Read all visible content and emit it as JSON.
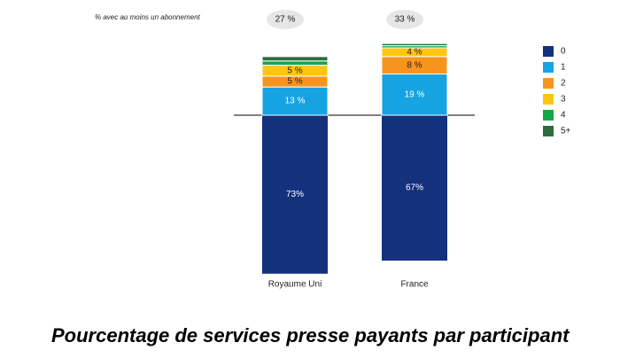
{
  "chart_data": {
    "type": "bar",
    "stacked": true,
    "title": "Pourcentage de services presse payants par participant",
    "subtitle": "% avec au moins un abonnement",
    "categories": [
      "Royaume Uni",
      "France"
    ],
    "annotations": [
      "27 %",
      "33 %"
    ],
    "legend": "upper right",
    "series": [
      {
        "name": "0",
        "color": "#14317d",
        "values": [
          73,
          67
        ],
        "value_labels": [
          "73%",
          "67%"
        ]
      },
      {
        "name": "1",
        "color": "#16a3e2",
        "values": [
          13,
          19
        ],
        "value_labels": [
          "13 %",
          "19 %"
        ]
      },
      {
        "name": "2",
        "color": "#f7941d",
        "values": [
          5,
          8
        ],
        "value_labels": [
          "5 %",
          "8 %"
        ]
      },
      {
        "name": "3",
        "color": "#ffc511",
        "values": [
          5,
          4
        ],
        "value_labels": [
          "5 %",
          "4 %"
        ]
      },
      {
        "name": "4",
        "color": "#12a84a",
        "values": [
          2,
          1
        ],
        "value_labels": [
          null,
          null
        ]
      },
      {
        "name": "5+",
        "color": "#2e6b3f",
        "values": [
          2,
          1
        ],
        "value_labels": [
          null,
          null
        ]
      }
    ]
  }
}
